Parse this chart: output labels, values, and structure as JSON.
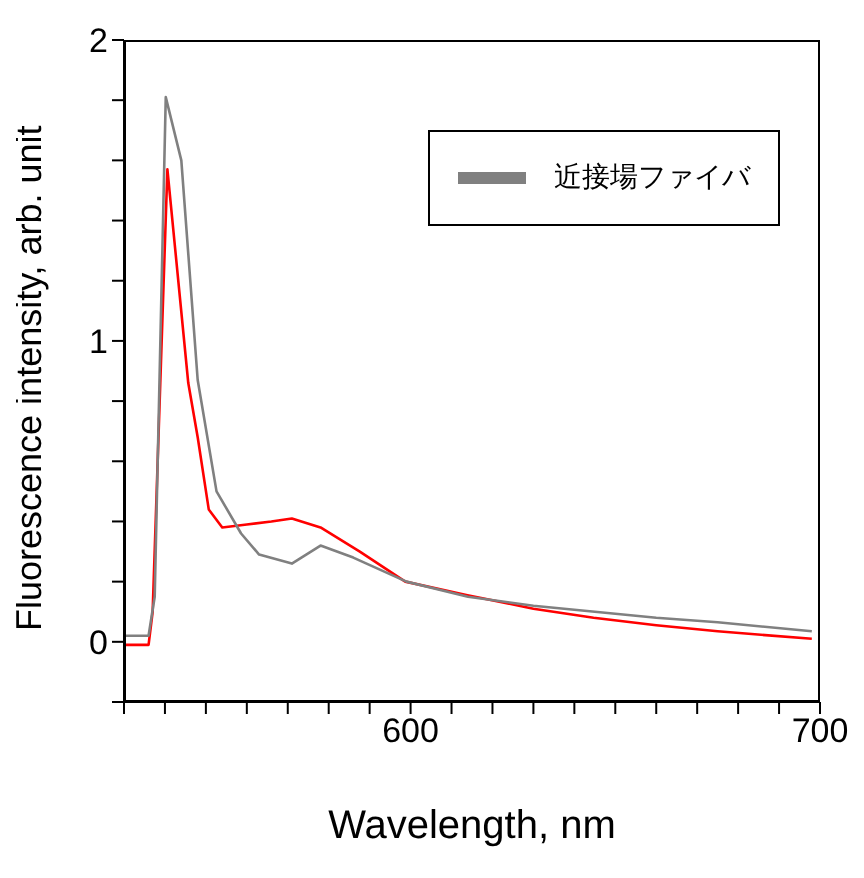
{
  "chart_data": {
    "type": "line",
    "xlabel": "Wavelength, nm",
    "ylabel": "Fluorescence intensity, arb. unit",
    "xlim": [
      530,
      700
    ],
    "ylim": [
      -0.2,
      2
    ],
    "xticks": [
      {
        "value": 530,
        "label": null
      },
      {
        "value": 540,
        "label": null
      },
      {
        "value": 550,
        "label": null
      },
      {
        "value": 560,
        "label": null
      },
      {
        "value": 570,
        "label": null
      },
      {
        "value": 580,
        "label": null
      },
      {
        "value": 590,
        "label": null
      },
      600,
      {
        "value": 610,
        "label": null
      },
      {
        "value": 620,
        "label": null
      },
      {
        "value": 630,
        "label": null
      },
      {
        "value": 640,
        "label": null
      },
      {
        "value": 650,
        "label": null
      },
      {
        "value": 660,
        "label": null
      },
      {
        "value": 670,
        "label": null
      },
      {
        "value": 680,
        "label": null
      },
      {
        "value": 690,
        "label": null
      },
      700
    ],
    "yticks": [
      {
        "value": -0.2,
        "label": null
      },
      0,
      {
        "value": 0.2,
        "label": null
      },
      {
        "value": 0.4,
        "label": null
      },
      {
        "value": 0.6,
        "label": null
      },
      {
        "value": 0.8,
        "label": null
      },
      1,
      {
        "value": 1.2,
        "label": null
      },
      {
        "value": 1.4,
        "label": null
      },
      {
        "value": 1.6,
        "label": null
      },
      {
        "value": 1.8,
        "label": null
      },
      2
    ],
    "legend": "top right",
    "grid": false,
    "marker": "none",
    "line_style": "solid",
    "series": [
      {
        "color": "#ff0000",
        "x": [
          530,
          536,
          537,
          540.6,
          545.7,
          548,
          550.7,
          554,
          560,
          566,
          571,
          578,
          587.6,
          598.7,
          613.9,
          630,
          644.7,
          660,
          675,
          698
        ],
        "values": [
          -0.01,
          -0.01,
          0.1,
          1.57,
          0.86,
          0.68,
          0.44,
          0.38,
          0.39,
          0.4,
          0.41,
          0.38,
          0.3,
          0.2,
          0.155,
          0.11,
          0.08,
          0.055,
          0.035,
          0.01
        ]
      },
      {
        "name": "近接場ファイバ",
        "color": "#808080",
        "x": [
          530,
          536,
          537.5,
          540.2,
          544,
          548,
          552.6,
          558.6,
          563,
          571,
          578,
          586,
          599,
          614,
          630,
          645,
          660,
          675,
          698
        ],
        "values": [
          0.02,
          0.02,
          0.15,
          1.81,
          1.6,
          0.87,
          0.5,
          0.36,
          0.29,
          0.26,
          0.32,
          0.28,
          0.2,
          0.15,
          0.12,
          0.1,
          0.08,
          0.065,
          0.035
        ]
      }
    ]
  }
}
